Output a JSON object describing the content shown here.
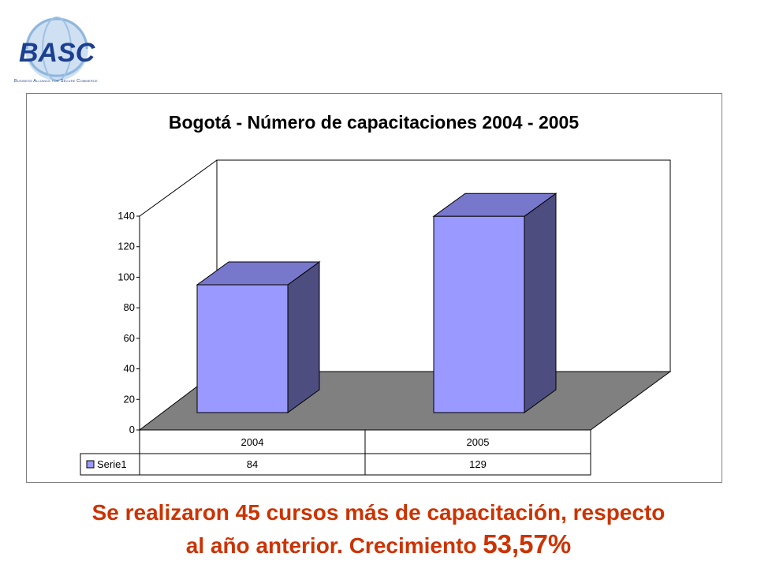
{
  "logo": {
    "text": "BASC",
    "caption": "Business Alliance for Secure Commerce"
  },
  "chart_data": {
    "type": "bar",
    "title": "Bogotá - Número de capacitaciones 2004 - 2005",
    "categories": [
      "2004",
      "2005"
    ],
    "series": [
      {
        "name": "Serie1",
        "values": [
          84,
          129
        ]
      }
    ],
    "ylim": [
      0,
      140
    ],
    "yticks": [
      "0",
      "20",
      "40",
      "60",
      "80",
      "100",
      "120",
      "140"
    ],
    "data_table": true,
    "colors": {
      "bar_front": "#9999ff",
      "bar_top": "#7777cc",
      "bar_side": "#4d4d80",
      "floor": "#808080"
    }
  },
  "caption": {
    "line1": "Se realizaron 45 cursos más de capacitación, respecto",
    "line2_prefix": "al año anterior. Crecimiento ",
    "line2_value": "53,57%"
  }
}
